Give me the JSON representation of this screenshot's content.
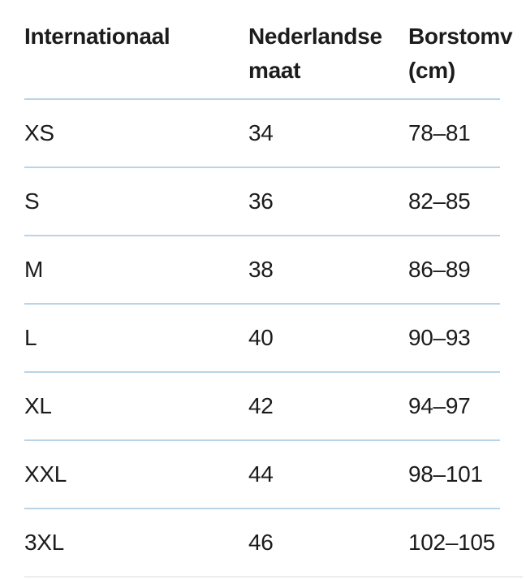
{
  "table": {
    "headers": {
      "col1": {
        "line1": "Internationaal",
        "line2": ""
      },
      "col2": {
        "line1": "Nederlandse",
        "line2": "maat"
      },
      "col3": {
        "line1": "Borstomv",
        "line2": "(cm)"
      }
    },
    "rows": [
      {
        "size": "XS",
        "nl": "34",
        "chest": "78–81"
      },
      {
        "size": "S",
        "nl": "36",
        "chest": "82–85"
      },
      {
        "size": "M",
        "nl": "38",
        "chest": "86–89"
      },
      {
        "size": "L",
        "nl": "40",
        "chest": "90–93"
      },
      {
        "size": "XL",
        "nl": "42",
        "chest": "94–97"
      },
      {
        "size": "XXL",
        "nl": "44",
        "chest": "98–101"
      },
      {
        "size": "3XL",
        "nl": "46",
        "chest": "102–105"
      }
    ]
  },
  "colors": {
    "separator": "#b9d3e7",
    "bottom_divider": "#ededed",
    "text": "#1c1c1c"
  }
}
